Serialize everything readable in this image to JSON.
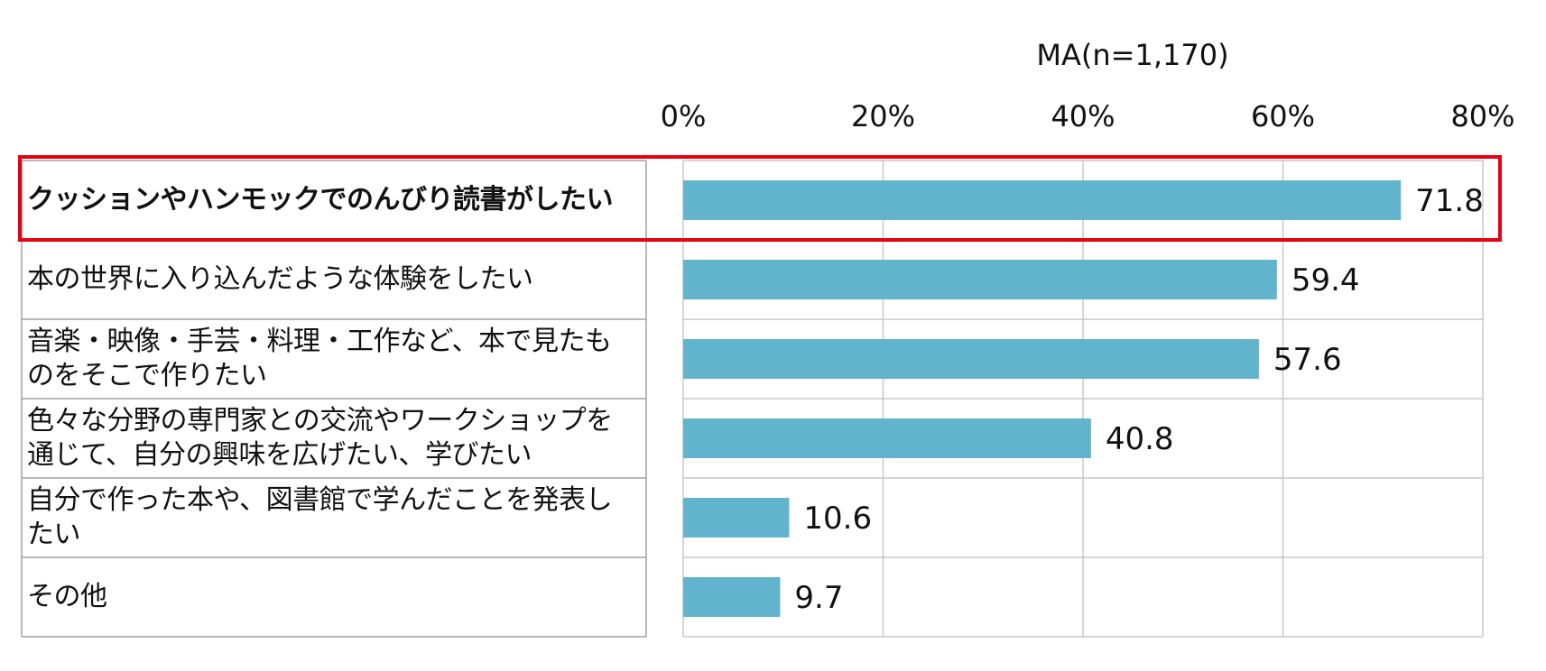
{
  "chart_data": {
    "type": "bar",
    "orientation": "horizontal",
    "note": "MA(n=1,170)",
    "xlim": [
      0,
      80
    ],
    "ticks": [
      0,
      20,
      40,
      60,
      80
    ],
    "tick_labels": [
      "0%",
      "20%",
      "40%",
      "60%",
      "80%"
    ],
    "grid": true,
    "categories": [
      "クッションやハンモックでのんびり読書がしたい",
      "本の世界に入り込んだような体験をしたい",
      "音楽・映像・手芸・料理・工作など、本で見たものをそこで作りたい",
      "色々な分野の専門家との交流やワークショップを通じて、自分の興味を広げたい、学びたい",
      "自分で作った本や、図書館で学んだことを発表したい",
      "その他"
    ],
    "values": [
      71.8,
      59.4,
      57.6,
      40.8,
      10.6,
      9.7
    ],
    "value_labels": [
      "71.8",
      "59.4",
      "57.6",
      "40.8",
      "10.6",
      "9.7"
    ],
    "highlighted_index": 0,
    "colors": {
      "bar": "#62b3cc",
      "highlight_border": "#e60012",
      "grid": "#c8c8c8",
      "row_border": "#a0a0a0"
    }
  }
}
